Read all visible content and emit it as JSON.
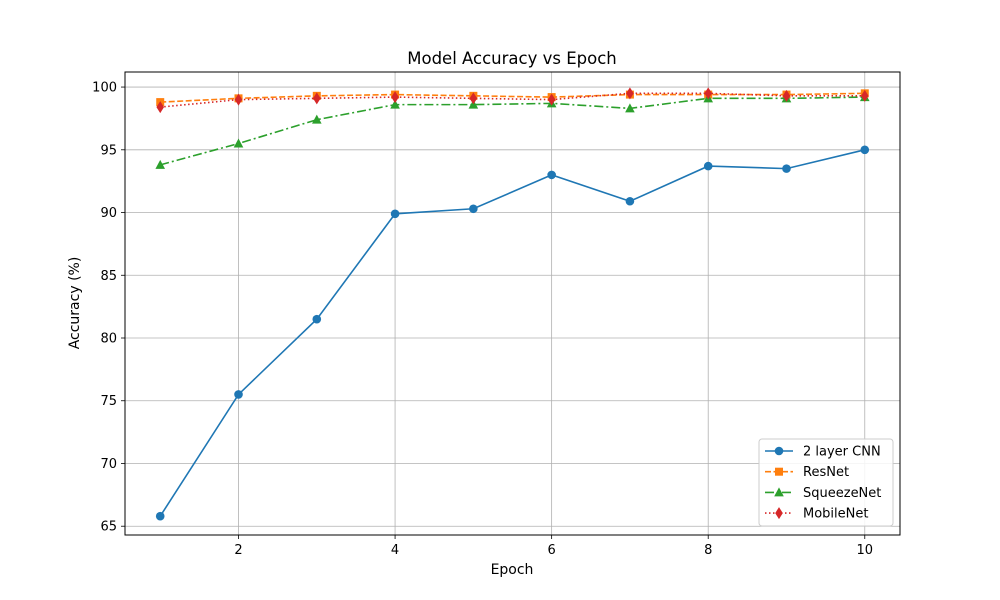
{
  "chart_data": {
    "type": "line",
    "title": "Model Accuracy vs Epoch",
    "xlabel": "Epoch",
    "ylabel": "Accuracy (%)",
    "x": [
      1,
      2,
      3,
      4,
      5,
      6,
      7,
      8,
      9,
      10
    ],
    "xlim": [
      0.55,
      10.45
    ],
    "ylim": [
      64.3,
      101.2
    ],
    "x_ticks": [
      2,
      4,
      6,
      8,
      10
    ],
    "y_ticks": [
      65,
      70,
      75,
      80,
      85,
      90,
      95,
      100
    ],
    "grid": true,
    "legend_position": "bottom-right",
    "series": [
      {
        "name": "2 layer CNN",
        "color": "#1f77b4",
        "marker": "circle",
        "linestyle": "solid",
        "values": [
          65.8,
          75.5,
          81.5,
          89.9,
          90.3,
          93.0,
          90.9,
          93.7,
          93.5,
          95.0
        ]
      },
      {
        "name": "ResNet",
        "color": "#ff7f0e",
        "marker": "square",
        "linestyle": "dashed",
        "values": [
          98.8,
          99.1,
          99.3,
          99.4,
          99.3,
          99.2,
          99.4,
          99.4,
          99.4,
          99.5
        ]
      },
      {
        "name": "SqueezeNet",
        "color": "#2ca02c",
        "marker": "triangle",
        "linestyle": "dashdot",
        "values": [
          93.8,
          95.5,
          97.4,
          98.6,
          98.6,
          98.7,
          98.3,
          99.1,
          99.1,
          99.2
        ]
      },
      {
        "name": "MobileNet",
        "color": "#d62728",
        "marker": "diamond",
        "linestyle": "dotted",
        "values": [
          98.4,
          99.0,
          99.1,
          99.2,
          99.1,
          99.0,
          99.5,
          99.5,
          99.3,
          99.3
        ]
      }
    ]
  }
}
